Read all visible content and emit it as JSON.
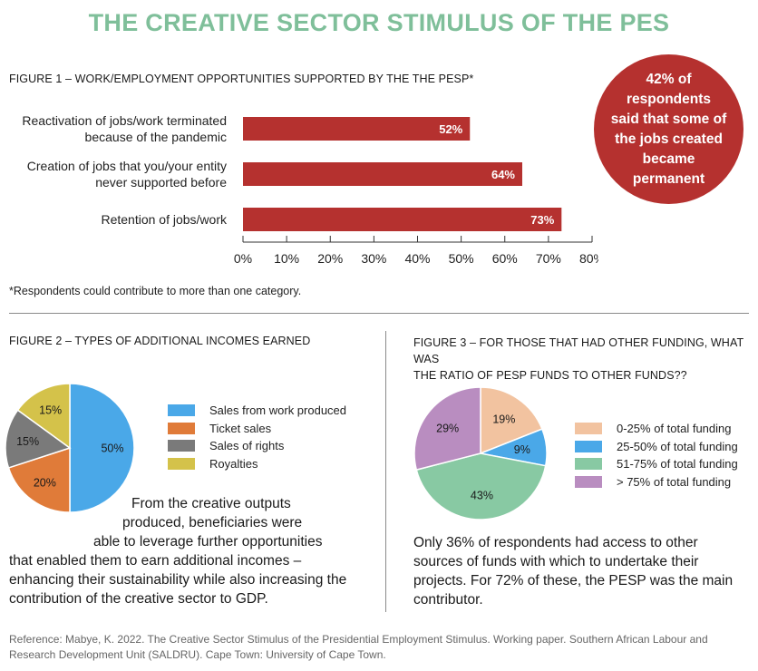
{
  "title": "THE CREATIVE SECTOR STIMULUS OF THE PES",
  "figure1": {
    "title": "FIGURE 1 – WORK/EMPLOYMENT OPPORTUNITIES SUPPORTED BY THE THE PESP*",
    "note": "*Respondents could contribute to more than one category.",
    "callout": "42% of respondents said that some of the jobs created became permanent"
  },
  "figure2": {
    "title": "FIGURE 2 – TYPES OF ADDITIONAL INCOMES EARNED",
    "paragraph": [
      "From the creative outputs",
      "produced, beneficiaries were",
      "able to leverage further opportunities",
      "that enabled them to earn additional incomes –",
      "enhancing their sustainability while also increasing the",
      "contribution of the creative sector to GDP."
    ]
  },
  "figure3": {
    "title_lines": [
      "FIGURE 3 – FOR THOSE THAT HAD OTHER FUNDING, WHAT WAS",
      "THE RATIO OF PESP FUNDS TO OTHER FUNDS??"
    ],
    "paragraph": [
      "Only 36% of respondents had access to other",
      "sources of funds with which to undertake their",
      "projects. For 72% of these, the PESP was the main",
      "contributor."
    ]
  },
  "reference": "Reference: Mabye, K. 2022. The Creative Sector Stimulus of the Presidential Employment Stimulus. Working paper. Southern African Labour and Research Development Unit (SALDRU). Cape Town: University of Cape Town.",
  "chart_data": [
    {
      "type": "bar",
      "orientation": "horizontal",
      "categories": [
        [
          "Reactivation of jobs/work terminated",
          "because of the pandemic"
        ],
        [
          "Creation of jobs that you/your entity",
          "never supported before"
        ],
        [
          "Retention of jobs/work"
        ]
      ],
      "values": [
        52,
        64,
        73
      ],
      "value_labels": [
        "52%",
        "64%",
        "73%"
      ],
      "xlim": [
        0,
        80
      ],
      "ticks": [
        0,
        10,
        20,
        30,
        40,
        50,
        60,
        70,
        80
      ],
      "tick_labels": [
        "0%",
        "10%",
        "20%",
        "30%",
        "40%",
        "50%",
        "60%",
        "70%",
        "80%"
      ],
      "color": "#b5312f",
      "grid": false
    },
    {
      "type": "pie",
      "slices": [
        {
          "label": "Sales from work produced",
          "value": 50,
          "text": "50%",
          "color": "#4aa8e8"
        },
        {
          "label": "Ticket sales",
          "value": 20,
          "text": "20%",
          "color": "#e07b39"
        },
        {
          "label": "Sales of rights",
          "value": 15,
          "text": "15%",
          "color": "#7a7a7a"
        },
        {
          "label": "Royalties",
          "value": 15,
          "text": "15%",
          "color": "#d4c24a"
        }
      ],
      "legend": "right"
    },
    {
      "type": "pie",
      "slices": [
        {
          "label": "0-25% of total funding",
          "value": 19,
          "text": "19%",
          "color": "#f2c3a0"
        },
        {
          "label": "25-50% of total funding",
          "value": 9,
          "text": "9%",
          "color": "#4aa8e8"
        },
        {
          "label": "51-75% of total funding",
          "value": 43,
          "text": "43%",
          "color": "#88c9a3"
        },
        {
          "label": "> 75% of total funding",
          "value": 29,
          "text": "29%",
          "color": "#b98dc0"
        }
      ],
      "legend": "right"
    }
  ]
}
